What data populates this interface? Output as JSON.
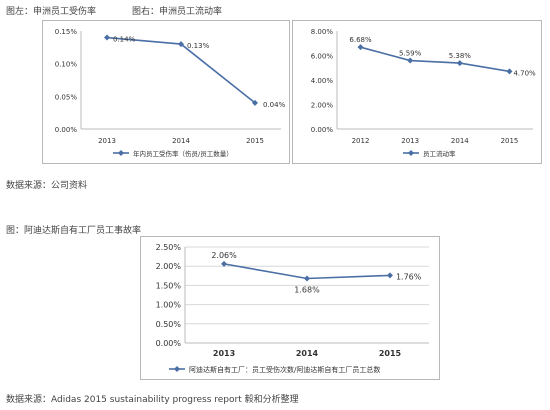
{
  "captions": {
    "left": "图左：申洲员工受伤率",
    "right": "图右：申洲员工流动率",
    "source1": "数据来源：公司资料",
    "bottom": "图：阿迪达斯自有工厂员工事故率",
    "source2": "数据来源：Adidas 2015 sustainability progress report 毅和分析整理"
  },
  "colors": {
    "line": "#4a6fa5",
    "grid": "#d8d8d8",
    "axis": "#bbbbbb",
    "text": "#333333"
  },
  "chart_data": [
    {
      "type": "line",
      "categories": [
        "2013",
        "2014",
        "2015"
      ],
      "series": [
        {
          "name": "年内员工受伤率（伤员/员工数量）",
          "values": [
            0.14,
            0.13,
            0.04
          ],
          "labels": [
            "0.14%",
            "0.13%",
            "0.04%"
          ]
        }
      ],
      "yticks": [
        "0.00%",
        "0.05%",
        "0.10%",
        "0.15%"
      ],
      "ylim": [
        0,
        0.15
      ],
      "grid": false,
      "legend": "bottom"
    },
    {
      "type": "line",
      "categories": [
        "2012",
        "2013",
        "2014",
        "2015"
      ],
      "series": [
        {
          "name": "员工流动率",
          "values": [
            6.68,
            5.59,
            5.38,
            4.7
          ],
          "labels": [
            "6.68%",
            "5.59%",
            "5.38%",
            "4.70%"
          ]
        }
      ],
      "yticks": [
        "0.00%",
        "2.00%",
        "4.00%",
        "6.00%",
        "8.00%"
      ],
      "ylim": [
        0,
        8
      ],
      "grid": false,
      "legend": "bottom"
    },
    {
      "type": "line",
      "categories": [
        "2013",
        "2014",
        "2015"
      ],
      "series": [
        {
          "name": "阿迪达斯自有工厂：员工受伤次数/阿迪达斯自有工厂员工总数",
          "values": [
            2.06,
            1.68,
            1.76
          ],
          "labels": [
            "2.06%",
            "1.68%",
            "1.76%"
          ]
        }
      ],
      "yticks": [
        "0.00%",
        "0.50%",
        "1.00%",
        "1.50%",
        "2.00%",
        "2.50%"
      ],
      "ylim": [
        0,
        2.5
      ],
      "grid": true,
      "legend": "bottom"
    }
  ]
}
